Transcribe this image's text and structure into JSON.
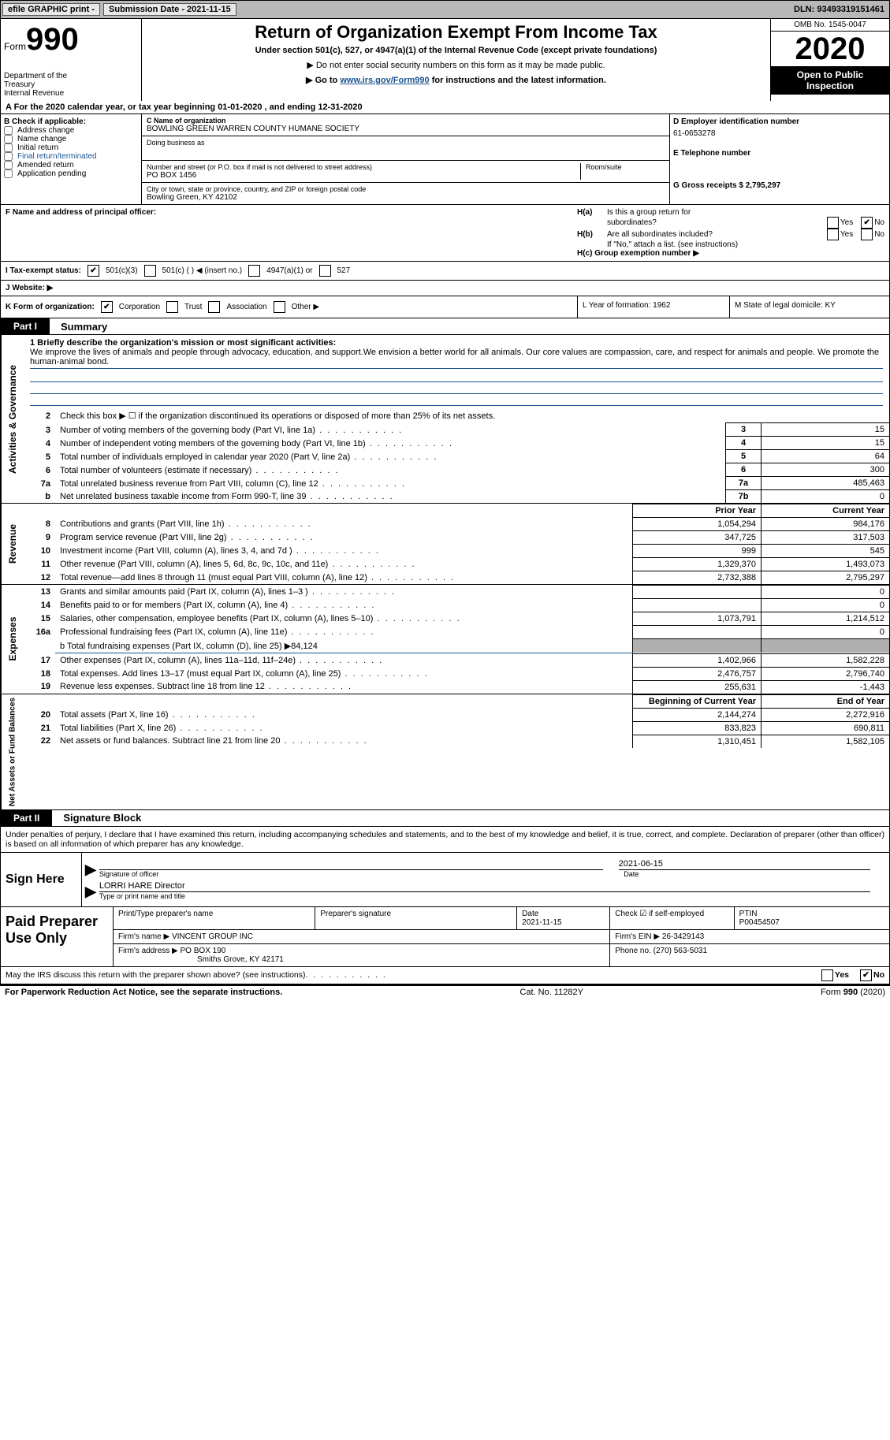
{
  "topbar": {
    "efile": "efile GRAPHIC print -",
    "submission_label": "Submission Date - 2021-11-15",
    "dln_label": "DLN: 93493319151461"
  },
  "header": {
    "form_word": "Form",
    "form_num": "990",
    "dept1": "Department of the",
    "dept2": "Treasury",
    "dept3": "Internal Revenue",
    "title": "Return of Organization Exempt From Income Tax",
    "subtitle": "Under section 501(c), 527, or 4947(a)(1) of the Internal Revenue Code (except private foundations)",
    "note1": "▶ Do not enter social security numbers on this form as it may be made public.",
    "note2_a": "▶ Go to ",
    "note2_link": "www.irs.gov/Form990",
    "note2_b": " for instructions and the latest information.",
    "omb": "OMB No. 1545-0047",
    "year": "2020",
    "open": "Open to Public Inspection"
  },
  "row_a": "A   For the 2020 calendar year, or tax year beginning 01-01-2020    , and ending 12-31-2020",
  "section_b": {
    "label": "B Check if applicable:",
    "cb1": "Address change",
    "cb2": "Name change",
    "cb3": "Initial return",
    "cb4": "Final return/terminated",
    "cb5": "Amended return",
    "cb6": "Application pending",
    "c_label": "C Name of organization",
    "c_name": "BOWLING GREEN WARREN COUNTY HUMANE SOCIETY",
    "dba_label": "Doing business as",
    "addr_label": "Number and street (or P.O. box if mail is not delivered to street address)",
    "addr_value": "PO BOX 1456",
    "room_label": "Room/suite",
    "city_label": "City or town, state or province, country, and ZIP or foreign postal code",
    "city_value": "Bowling Green, KY  42102",
    "d_label": "D Employer identification number",
    "d_value": "61-0653278",
    "e_label": "E Telephone number",
    "g_label": "G Gross receipts $ 2,795,297"
  },
  "section_fh": {
    "f_label": "F Name and address of principal officer:",
    "ha_label": "H(a)  Is this a group return for",
    "ha_sub": "subordinates?",
    "hb_label": "H(b)  Are all subordinates included?",
    "hb_note": "If \"No,\" attach a list. (see instructions)",
    "hc_label": "H(c)  Group exemption number ▶",
    "yes": "Yes",
    "no": "No"
  },
  "row_i": {
    "label": "I    Tax-exempt status:",
    "opt1": "501(c)(3)",
    "opt2": "501(c) (  ) ◀ (insert no.)",
    "opt3": "4947(a)(1) or",
    "opt4": "527"
  },
  "row_j": {
    "label": "J    Website: ▶"
  },
  "row_klm": {
    "k_label": "K Form of organization:",
    "k1": "Corporation",
    "k2": "Trust",
    "k3": "Association",
    "k4": "Other ▶",
    "l_label": "L Year of formation: 1962",
    "m_label": "M State of legal domicile: KY"
  },
  "part1": {
    "label": "Part I",
    "title": "Summary",
    "vlabel1": "Activities & Governance",
    "vlabel2": "Revenue",
    "vlabel3": "Expenses",
    "vlabel4": "Net Assets or Fund Balances",
    "line1_label": "1  Briefly describe the organization's mission or most significant activities:",
    "mission": "We improve the lives of animals and people through advocacy, education, and support.We envision a better world for all animals. Our core values are compassion, care, and respect for animals and people. We promote the human-animal bond.",
    "line2": "Check this box ▶ ☐  if the organization discontinued its operations or disposed of more than 25% of its net assets.",
    "rows_single": [
      {
        "n": "3",
        "text": "Number of voting members of the governing body (Part VI, line 1a)",
        "box": "3",
        "val": "15"
      },
      {
        "n": "4",
        "text": "Number of independent voting members of the governing body (Part VI, line 1b)",
        "box": "4",
        "val": "15"
      },
      {
        "n": "5",
        "text": "Total number of individuals employed in calendar year 2020 (Part V, line 2a)",
        "box": "5",
        "val": "64"
      },
      {
        "n": "6",
        "text": "Total number of volunteers (estimate if necessary)",
        "box": "6",
        "val": "300"
      },
      {
        "n": "7a",
        "text": "Total unrelated business revenue from Part VIII, column (C), line 12",
        "box": "7a",
        "val": "485,463"
      },
      {
        "n": "b",
        "text": "Net unrelated business taxable income from Form 990-T, line 39",
        "box": "7b",
        "val": "0"
      }
    ],
    "header_prior": "Prior Year",
    "header_current": "Current Year",
    "revenue_rows": [
      {
        "n": "8",
        "text": "Contributions and grants (Part VIII, line 1h)",
        "prior": "1,054,294",
        "current": "984,176"
      },
      {
        "n": "9",
        "text": "Program service revenue (Part VIII, line 2g)",
        "prior": "347,725",
        "current": "317,503"
      },
      {
        "n": "10",
        "text": "Investment income (Part VIII, column (A), lines 3, 4, and 7d )",
        "prior": "999",
        "current": "545"
      },
      {
        "n": "11",
        "text": "Other revenue (Part VIII, column (A), lines 5, 6d, 8c, 9c, 10c, and 11e)",
        "prior": "1,329,370",
        "current": "1,493,073"
      },
      {
        "n": "12",
        "text": "Total revenue—add lines 8 through 11 (must equal Part VIII, column (A), line 12)",
        "prior": "2,732,388",
        "current": "2,795,297"
      }
    ],
    "expense_rows": [
      {
        "n": "13",
        "text": "Grants and similar amounts paid (Part IX, column (A), lines 1–3 )",
        "prior": "",
        "current": "0"
      },
      {
        "n": "14",
        "text": "Benefits paid to or for members (Part IX, column (A), line 4)",
        "prior": "",
        "current": "0"
      },
      {
        "n": "15",
        "text": "Salaries, other compensation, employee benefits (Part IX, column (A), lines 5–10)",
        "prior": "1,073,791",
        "current": "1,214,512"
      },
      {
        "n": "16a",
        "text": "Professional fundraising fees (Part IX, column (A), line 11e)",
        "prior": "",
        "current": "0"
      }
    ],
    "line16b": "b  Total fundraising expenses (Part IX, column (D), line 25) ▶84,124",
    "expense_rows2": [
      {
        "n": "17",
        "text": "Other expenses (Part IX, column (A), lines 11a–11d, 11f–24e)",
        "prior": "1,402,966",
        "current": "1,582,228"
      },
      {
        "n": "18",
        "text": "Total expenses. Add lines 13–17 (must equal Part IX, column (A), line 25)",
        "prior": "2,476,757",
        "current": "2,796,740"
      },
      {
        "n": "19",
        "text": "Revenue less expenses. Subtract line 18 from line 12",
        "prior": "255,631",
        "current": "-1,443"
      }
    ],
    "header_begin": "Beginning of Current Year",
    "header_end": "End of Year",
    "net_rows": [
      {
        "n": "20",
        "text": "Total assets (Part X, line 16)",
        "prior": "2,144,274",
        "current": "2,272,916"
      },
      {
        "n": "21",
        "text": "Total liabilities (Part X, line 26)",
        "prior": "833,823",
        "current": "690,811"
      },
      {
        "n": "22",
        "text": "Net assets or fund balances. Subtract line 21 from line 20",
        "prior": "1,310,451",
        "current": "1,582,105"
      }
    ]
  },
  "part2": {
    "label": "Part II",
    "title": "Signature Block",
    "intro": "Under penalties of perjury, I declare that I have examined this return, including accompanying schedules and statements, and to the best of my knowledge and belief, it is true, correct, and complete. Declaration of preparer (other than officer) is based on all information of which preparer has any knowledge.",
    "sign_here": "Sign Here",
    "sig_date": "2021-06-15",
    "sig_officer_label": "Signature of officer",
    "date_label": "Date",
    "officer_name": "LORRI HARE  Director",
    "officer_type_label": "Type or print name and title",
    "paid_label": "Paid Preparer Use Only",
    "prep_name_label": "Print/Type preparer's name",
    "prep_sig_label": "Preparer's signature",
    "prep_date_label": "Date",
    "prep_date": "2021-11-15",
    "self_emp": "Check ☑ if self-employed",
    "ptin_label": "PTIN",
    "ptin": "P00454507",
    "firm_name_label": "Firm's name    ▶",
    "firm_name": "VINCENT GROUP INC",
    "firm_ein_label": "Firm's EIN ▶",
    "firm_ein": "26-3429143",
    "firm_addr_label": "Firm's address ▶",
    "firm_addr1": "PO BOX 190",
    "firm_addr2": "Smiths Grove, KY  42171",
    "phone_label": "Phone no.",
    "phone": "(270) 563-5031",
    "discuss": "May the IRS discuss this return with the preparer shown above? (see instructions)"
  },
  "footer": {
    "left": "For Paperwork Reduction Act Notice, see the separate instructions.",
    "mid": "Cat. No. 11282Y",
    "right": "Form 990 (2020)"
  }
}
